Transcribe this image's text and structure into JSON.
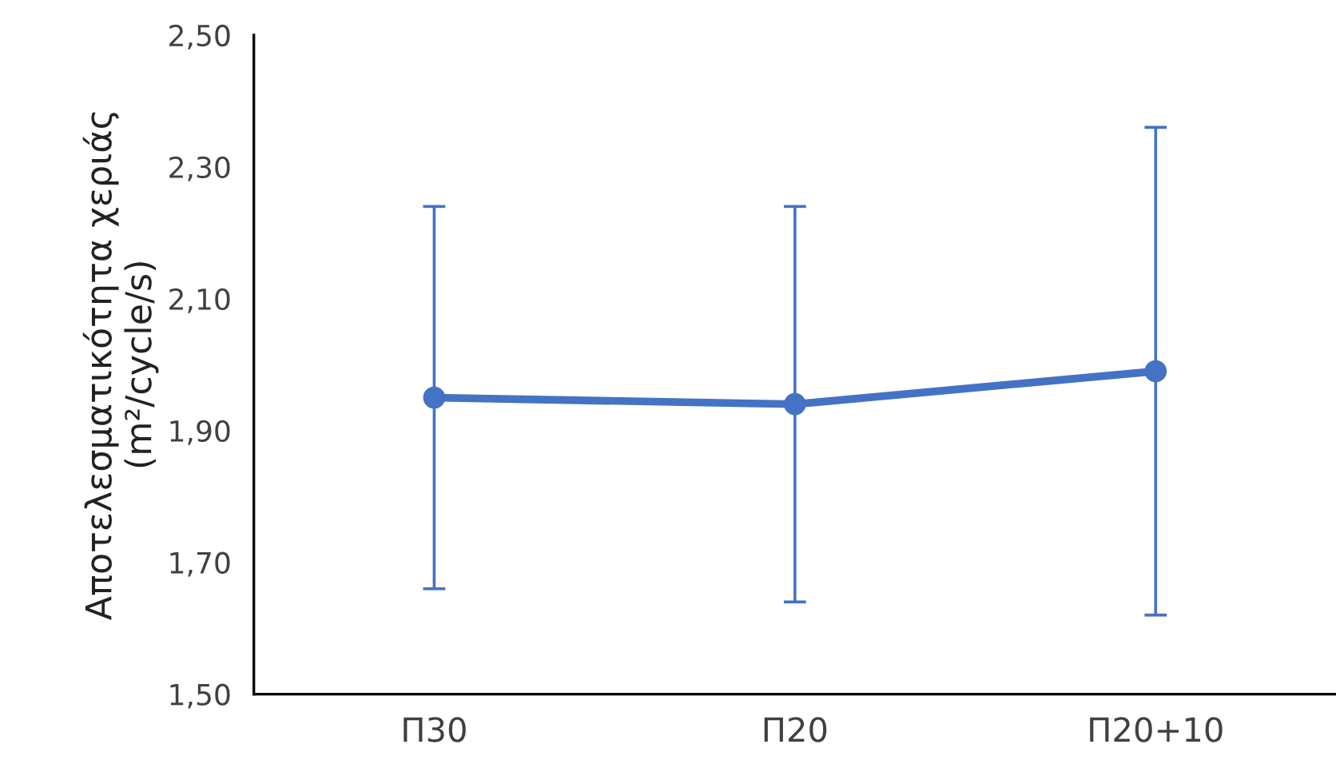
{
  "chart_data": {
    "type": "line",
    "ylabel": "Αποτελεσματικότητα χεριάς\n(m²/cycle/s)",
    "categories": [
      "Π30",
      "Π20",
      "Π20+10"
    ],
    "series": [
      {
        "color": "#4472c4",
        "values": [
          1.95,
          1.94,
          1.99
        ],
        "errors": [
          0.29,
          0.3,
          0.37
        ]
      }
    ],
    "ylim": [
      1.5,
      2.5
    ],
    "yticks": [
      {
        "value": 1.5,
        "label": "1,50"
      },
      {
        "value": 1.7,
        "label": "1,70"
      },
      {
        "value": 1.9,
        "label": "1,90"
      },
      {
        "value": 2.1,
        "label": "2,10"
      },
      {
        "value": 2.3,
        "label": "2,30"
      },
      {
        "value": 2.5,
        "label": "2,50"
      }
    ],
    "grid": false,
    "legend": false,
    "marker": "circle",
    "line_style": "solid"
  }
}
